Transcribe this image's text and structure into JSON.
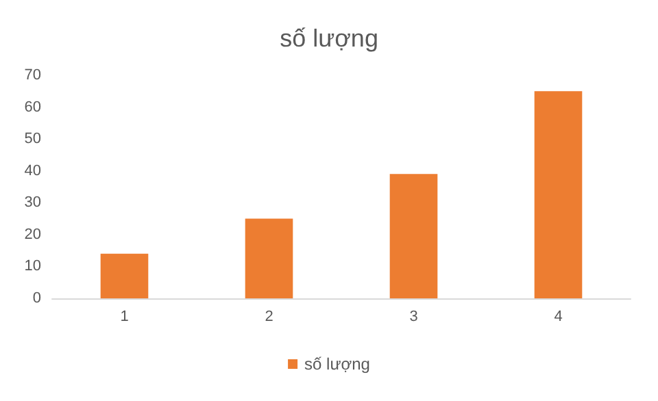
{
  "chart_data": {
    "type": "bar",
    "title": "số lượng",
    "categories": [
      "1",
      "2",
      "3",
      "4"
    ],
    "series": [
      {
        "name": "số lượng",
        "color": "#ed7d31",
        "values": [
          14,
          25,
          39,
          65
        ]
      }
    ],
    "ylim": [
      0,
      70
    ],
    "yticks": [
      0,
      10,
      20,
      30,
      40,
      50,
      60,
      70
    ],
    "grid": false,
    "legend": "bottom"
  }
}
